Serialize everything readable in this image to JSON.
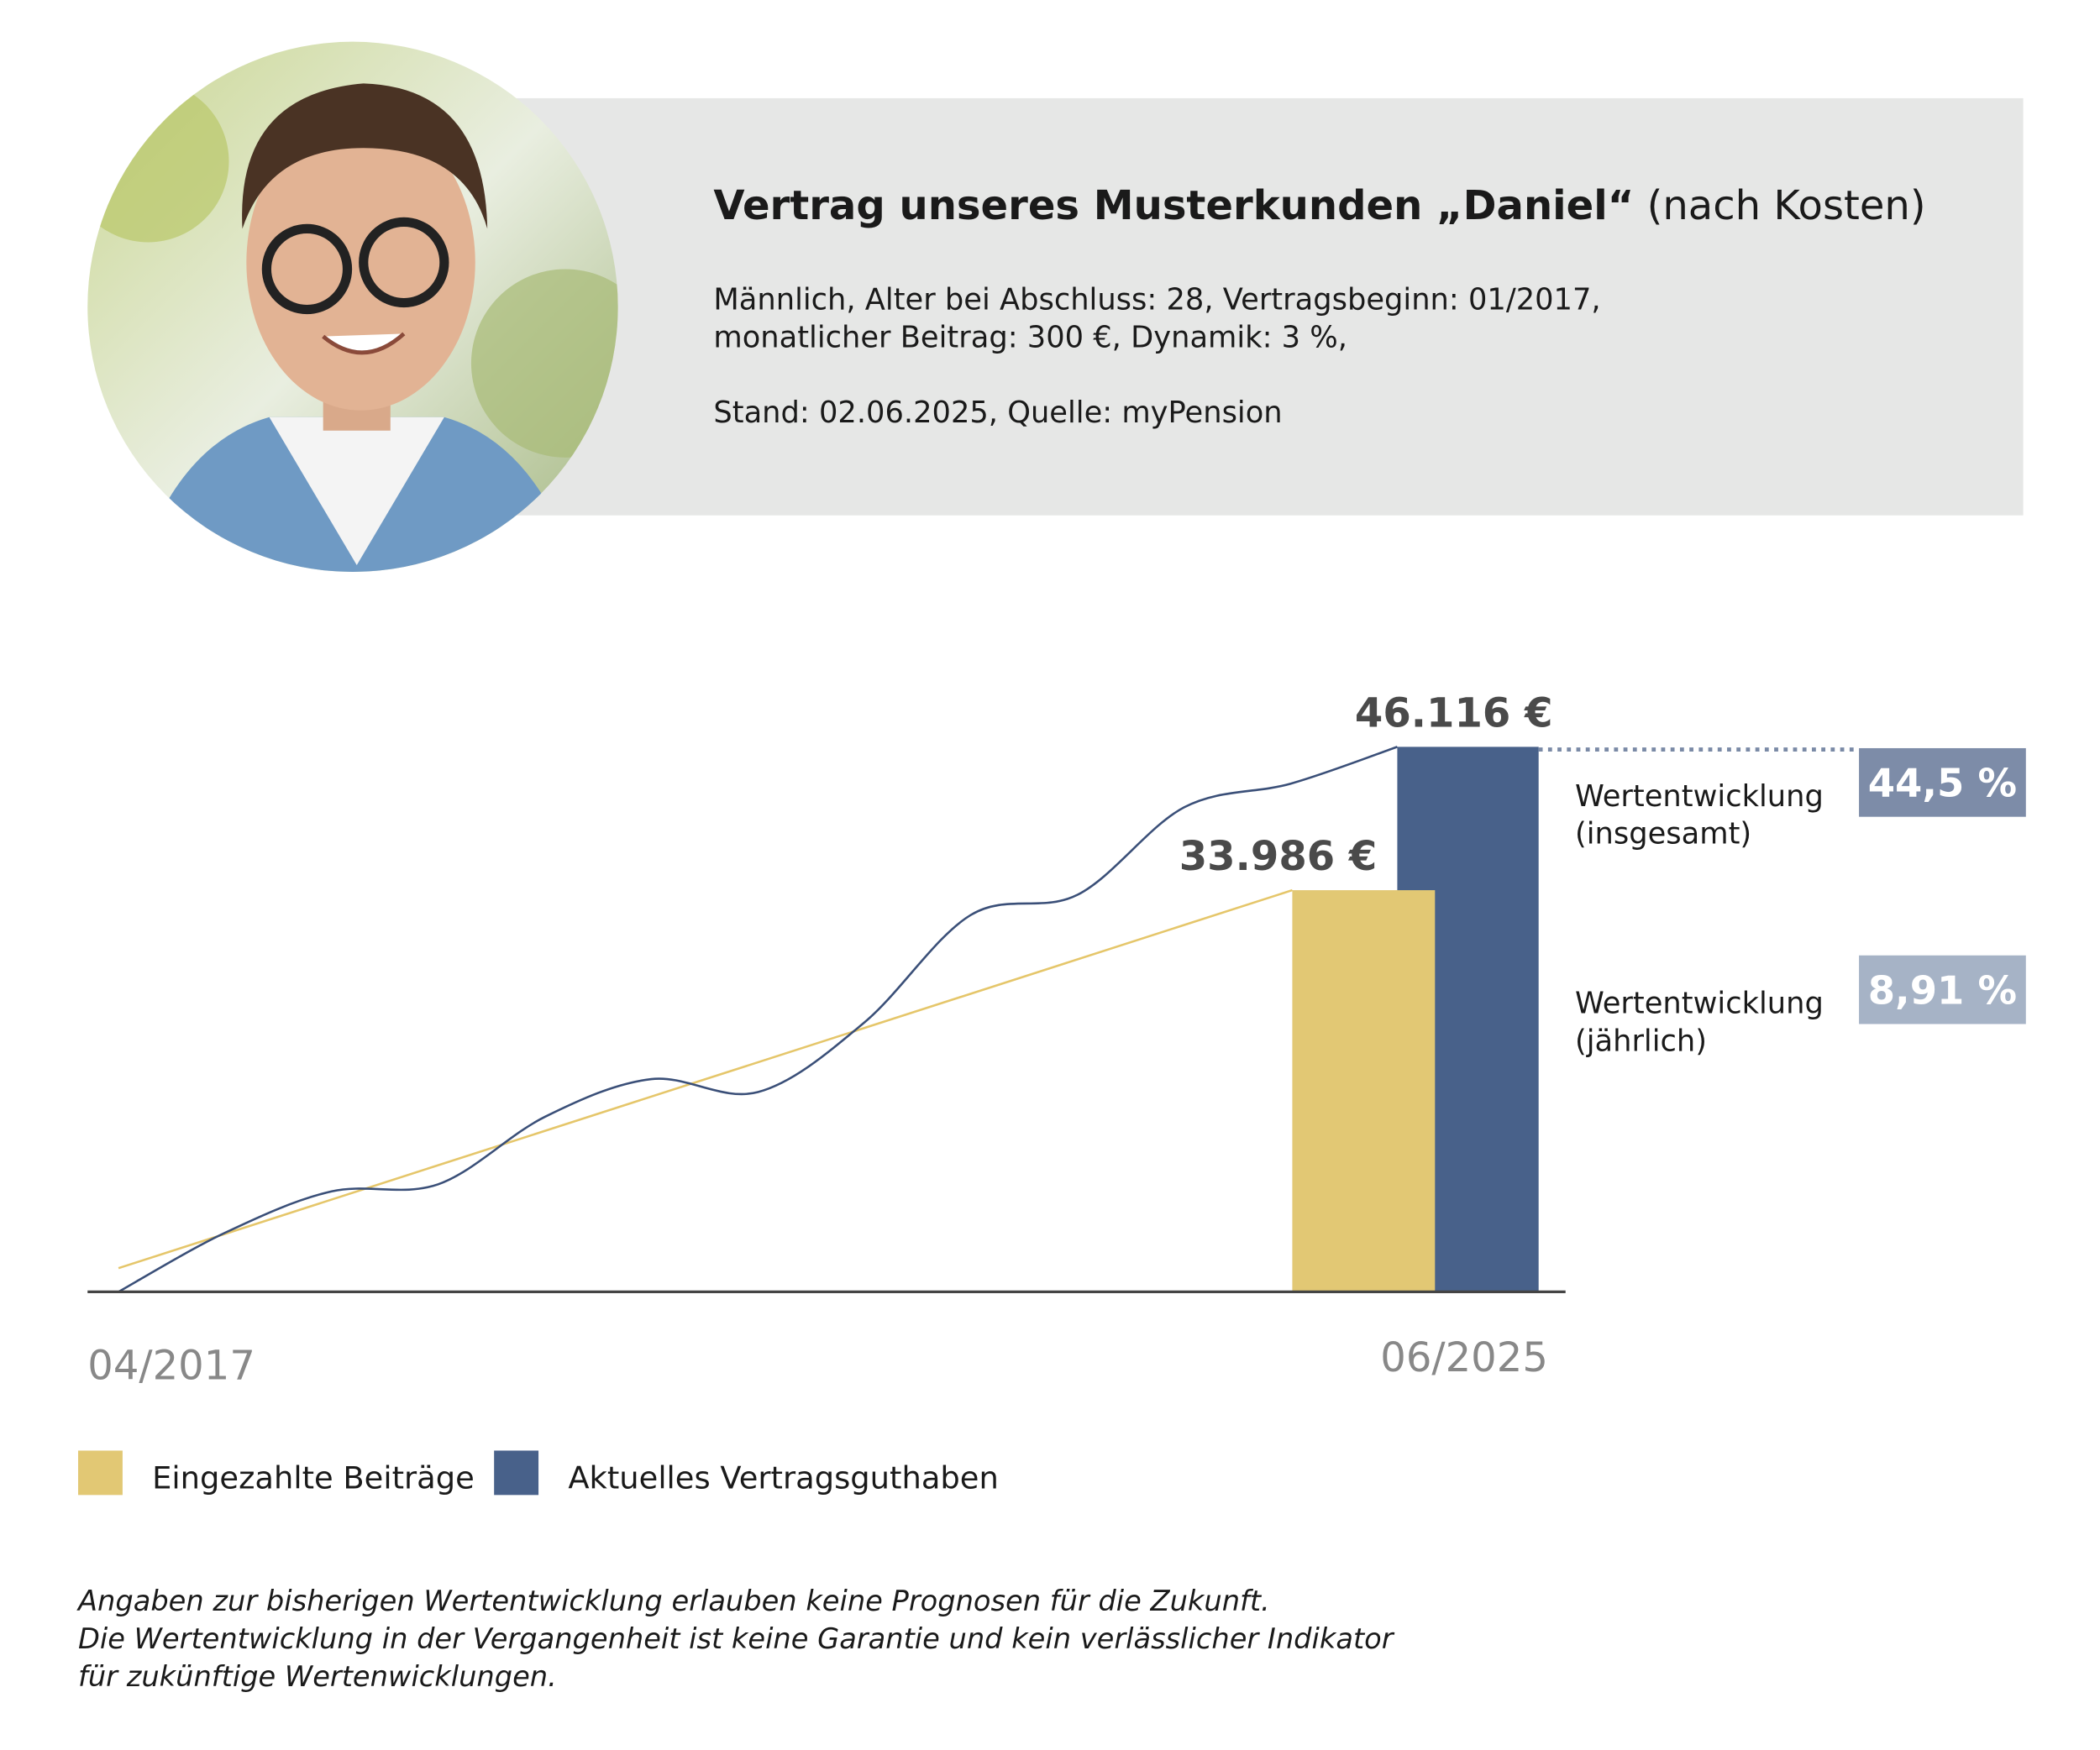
{
  "header": {
    "title_bold": "Vertrag unseres Musterkunden „Daniel“",
    "title_rest": "(nach Kosten)",
    "details": [
      "Männlich, Alter bei Abschluss: 28, Vertragsbeginn: 01/2017,",
      "monatlicher Beitrag: 300 €, Dynamik: 3 %,",
      "Stand: 02.06.2025, Quelle: myPension"
    ]
  },
  "chart_data": {
    "type": "line",
    "x_start_label": "04/2017",
    "x_end_label": "06/2025",
    "ylim": [
      0,
      50000
    ],
    "series": [
      {
        "name": "Eingezahlte Beiträge",
        "color": "#e2c874",
        "line_color": "#e5c66a",
        "values": [
          2000,
          33986
        ],
        "total": 33986,
        "total_label": "33.986 €"
      },
      {
        "name": "Aktuelles Vertragsguthaben",
        "color": "#48618a",
        "line_color": "#3a4f78",
        "values": [
          0,
          5000,
          8500,
          9100,
          14800,
          18000,
          16900,
          22800,
          31900,
          33600,
          41000,
          43000,
          46116
        ],
        "total": 46116,
        "total_label": "46.116 €"
      }
    ],
    "annotations": [
      {
        "text": [
          "Wertentwicklung",
          "(insgesamt)"
        ],
        "value": 44.5,
        "value_label": "44,5 %",
        "color": "#7d8ca8"
      },
      {
        "text": [
          "Wertentwicklung",
          "(jährlich)"
        ],
        "value": 8.91,
        "value_label": "8,91 %",
        "color": "#a6b3c6"
      }
    ]
  },
  "disclaimer": [
    "Angaben zur bisherigen Wertentwicklung erlauben keine Prognosen für die Zukunft.",
    "Die Wertentwicklung in der Vergangenheit ist keine Garantie und kein verlässlicher Indikator",
    "für zukünftige Wertenwicklungen."
  ]
}
